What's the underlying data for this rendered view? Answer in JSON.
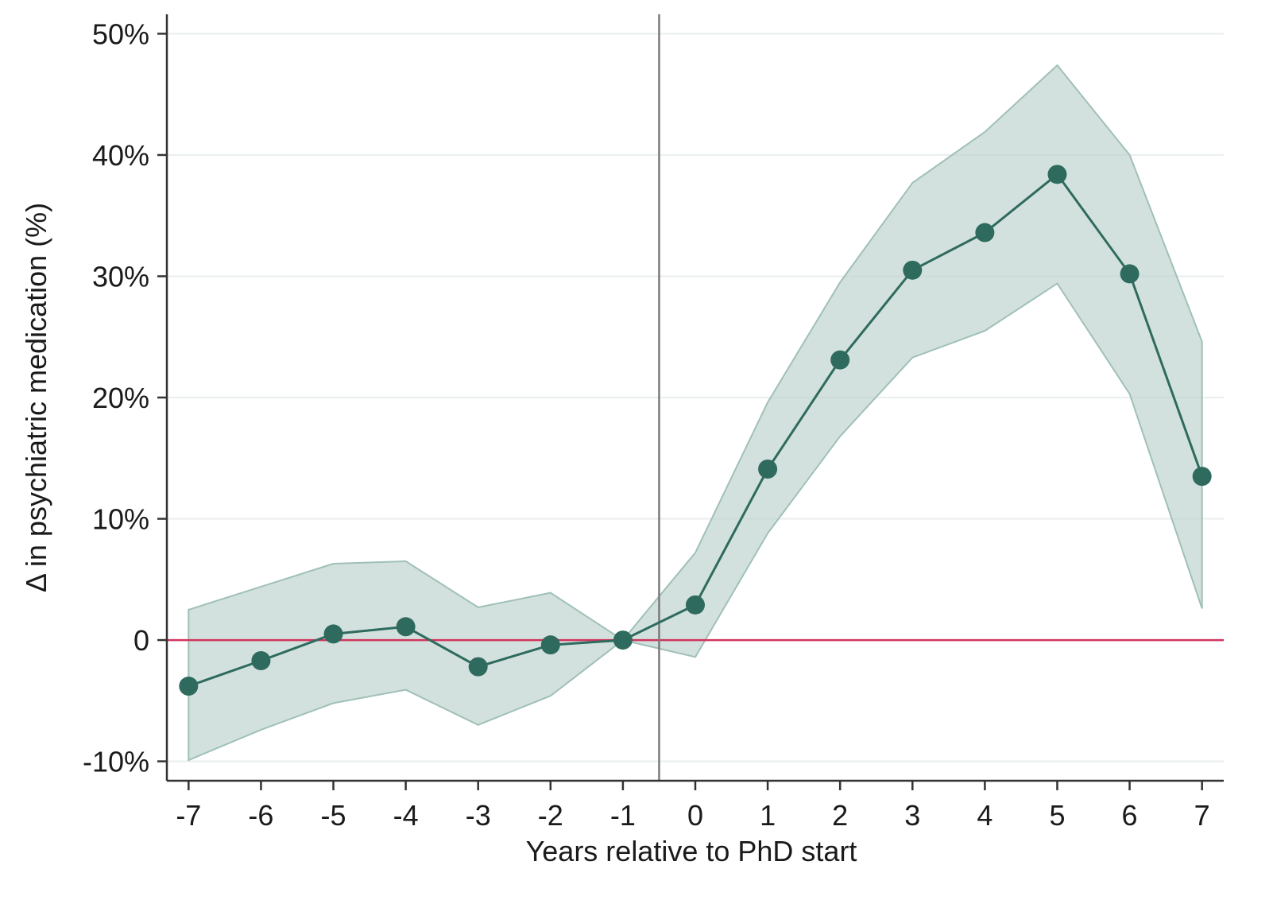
{
  "chart_data": {
    "type": "line",
    "title": "",
    "xlabel": "Years relative to PhD start",
    "ylabel": "Δ in psychiatric medication (%)",
    "x": [
      -7,
      -6,
      -5,
      -4,
      -3,
      -2,
      -1,
      0,
      1,
      2,
      3,
      4,
      5,
      6,
      7
    ],
    "series": [
      {
        "values": [
          -3.8,
          -1.7,
          0.5,
          1.1,
          -2.2,
          -0.4,
          0.0,
          2.9,
          14.1,
          23.1,
          30.5,
          33.6,
          38.4,
          30.2,
          13.5
        ],
        "ci_lower": [
          -9.9,
          -7.4,
          -5.2,
          -4.1,
          -7.0,
          -4.6,
          0.0,
          -1.4,
          8.8,
          16.8,
          23.3,
          25.5,
          29.4,
          20.3,
          2.6
        ],
        "ci_upper": [
          2.5,
          4.4,
          6.3,
          6.5,
          2.7,
          3.9,
          0.0,
          7.2,
          19.6,
          29.5,
          37.7,
          41.9,
          47.4,
          40.0,
          24.6
        ]
      }
    ],
    "xticks": [
      "-7",
      "-6",
      "-5",
      "-4",
      "-3",
      "-2",
      "-1",
      "0",
      "1",
      "2",
      "3",
      "4",
      "5",
      "6",
      "7"
    ],
    "yticks": [
      {
        "value": -10,
        "label": "-10%"
      },
      {
        "value": 0,
        "label": "0"
      },
      {
        "value": 10,
        "label": "10%"
      },
      {
        "value": 20,
        "label": "20%"
      },
      {
        "value": 30,
        "label": "30%"
      },
      {
        "value": 40,
        "label": "40%"
      },
      {
        "value": 50,
        "label": "50%"
      }
    ],
    "xlim": [
      -7.3,
      7.3
    ],
    "ylim": [
      -11.6,
      51.6
    ],
    "vline_x": -0.5,
    "hline_y": 0,
    "grid": "horizontal",
    "colors": {
      "line": "#2e6b5e",
      "band": "#b8cfca",
      "band_edge": "#9fc0b8",
      "zero_line": "#d1345b",
      "vline": "#7a7a7a",
      "grid": "#e9eeee",
      "axis": "#333333"
    }
  }
}
